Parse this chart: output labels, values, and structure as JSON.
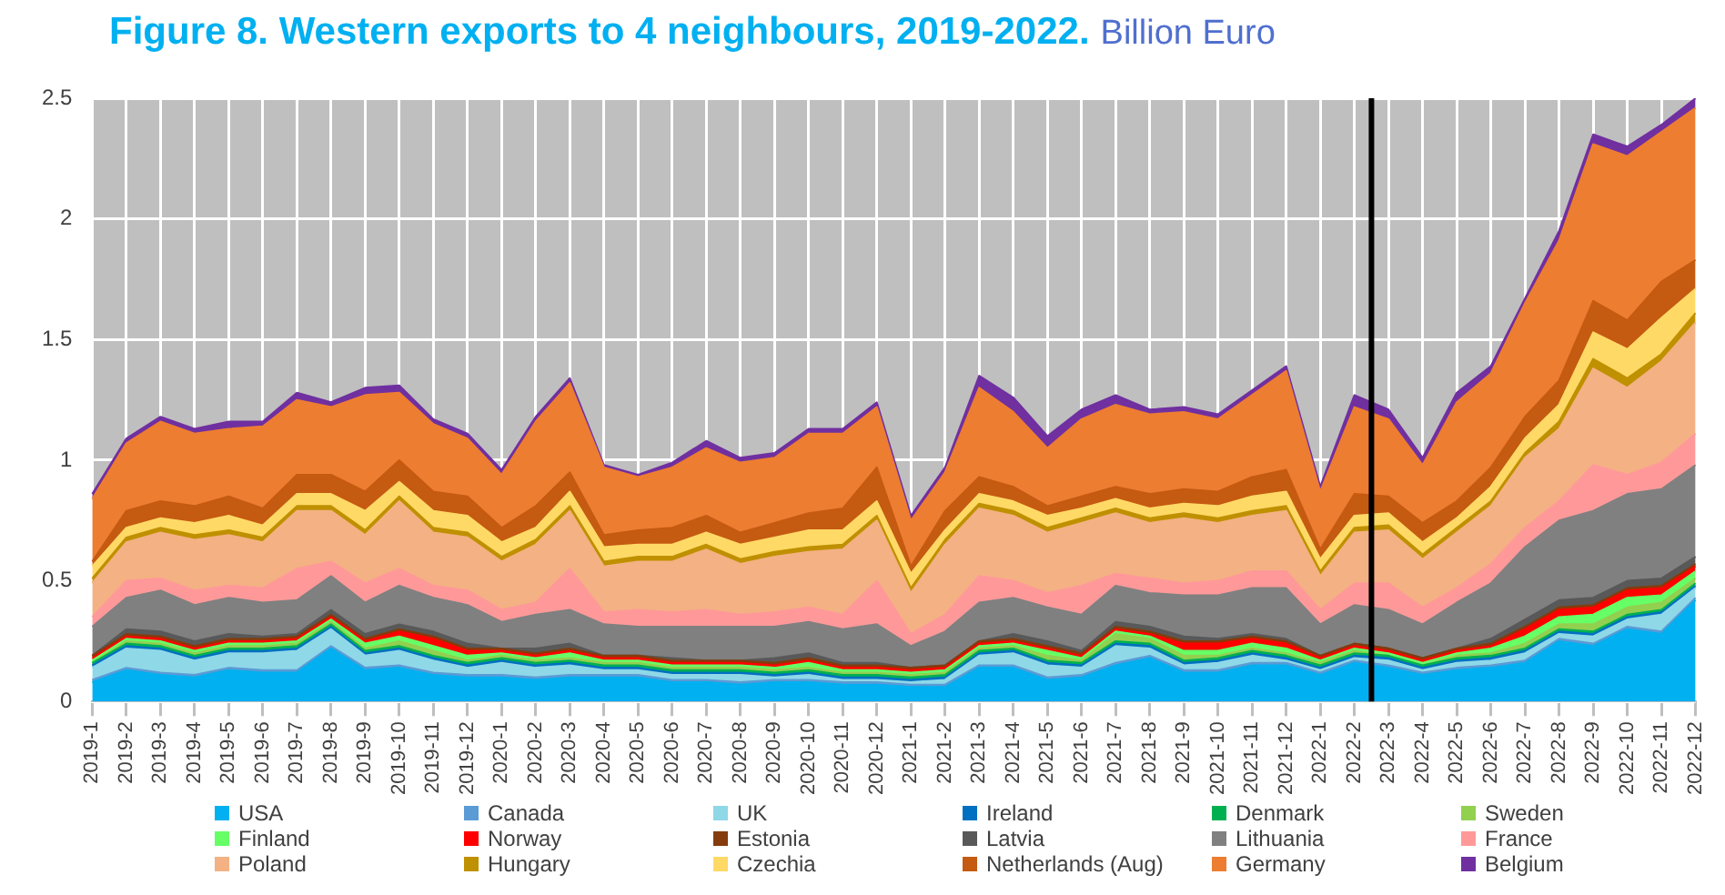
{
  "chart_data": {
    "type": "area",
    "title": "Figure 8. Western exports to 4 neighbours, 2019-2022.",
    "subtitle": "Billion Euro",
    "stacked": true,
    "grid": true,
    "legend": "bottom",
    "ylim": [
      0,
      2.5
    ],
    "yticks": [
      0,
      0.5,
      1,
      1.5,
      2,
      2.5
    ],
    "categories": [
      "2019-1",
      "2019-2",
      "2019-3",
      "2019-4",
      "2019-5",
      "2019-6",
      "2019-7",
      "2019-8",
      "2019-9",
      "2019-10",
      "2019-11",
      "2019-12",
      "2020-1",
      "2020-2",
      "2020-3",
      "2020-4",
      "2020-5",
      "2020-6",
      "2020-7",
      "2020-8",
      "2020-9",
      "2020-10",
      "2020-11",
      "2020-12",
      "2021-1",
      "2021-2",
      "2021-3",
      "2021-4",
      "2021-5",
      "2021-6",
      "2021-7",
      "2021-8",
      "2021-9",
      "2021-10",
      "2021-11",
      "2021-12",
      "2022-1",
      "2022-2",
      "2022-3",
      "2022-4",
      "2022-5",
      "2022-6",
      "2022-7",
      "2022-8",
      "2022-9",
      "2022-10",
      "2022-11",
      "2022-12"
    ],
    "ref_lines": [
      {
        "axis": "x",
        "value": "2022-3",
        "color": "#000000"
      }
    ],
    "series": [
      {
        "name": "USA",
        "color": "#00b0f0",
        "values": [
          0.08,
          0.13,
          0.11,
          0.1,
          0.13,
          0.12,
          0.12,
          0.22,
          0.13,
          0.14,
          0.11,
          0.1,
          0.1,
          0.09,
          0.1,
          0.1,
          0.1,
          0.08,
          0.08,
          0.07,
          0.08,
          0.08,
          0.07,
          0.07,
          0.06,
          0.06,
          0.14,
          0.14,
          0.09,
          0.1,
          0.15,
          0.18,
          0.12,
          0.12,
          0.15,
          0.15,
          0.11,
          0.16,
          0.14,
          0.11,
          0.13,
          0.14,
          0.16,
          0.25,
          0.23,
          0.3,
          0.28,
          0.42
        ]
      },
      {
        "name": "Canada",
        "color": "#5b9bd5",
        "values": [
          0.01,
          0.01,
          0.01,
          0.01,
          0.01,
          0.01,
          0.01,
          0.01,
          0.01,
          0.01,
          0.01,
          0.01,
          0.01,
          0.01,
          0.01,
          0.01,
          0.01,
          0.01,
          0.01,
          0.01,
          0.01,
          0.01,
          0.01,
          0.01,
          0.01,
          0.01,
          0.01,
          0.01,
          0.01,
          0.01,
          0.01,
          0.01,
          0.01,
          0.01,
          0.01,
          0.01,
          0.01,
          0.01,
          0.01,
          0.01,
          0.01,
          0.01,
          0.01,
          0.01,
          0.01,
          0.01,
          0.01,
          0.01
        ]
      },
      {
        "name": "UK",
        "color": "#8fd8e8",
        "values": [
          0.05,
          0.08,
          0.09,
          0.06,
          0.06,
          0.07,
          0.08,
          0.07,
          0.05,
          0.06,
          0.05,
          0.03,
          0.05,
          0.04,
          0.04,
          0.02,
          0.02,
          0.02,
          0.02,
          0.03,
          0.01,
          0.02,
          0.01,
          0.01,
          0.01,
          0.02,
          0.04,
          0.05,
          0.05,
          0.03,
          0.07,
          0.03,
          0.02,
          0.03,
          0.03,
          0.01,
          0.01,
          0.01,
          0.02,
          0.01,
          0.02,
          0.02,
          0.03,
          0.02,
          0.03,
          0.03,
          0.07,
          0.04
        ]
      },
      {
        "name": "Ireland",
        "color": "#0070c0",
        "values": [
          0.01,
          0.01,
          0.01,
          0.01,
          0.01,
          0.01,
          0.01,
          0.01,
          0.01,
          0.01,
          0.01,
          0.01,
          0.01,
          0.01,
          0.01,
          0.01,
          0.01,
          0.01,
          0.01,
          0.01,
          0.01,
          0.01,
          0.01,
          0.01,
          0.01,
          0.01,
          0.01,
          0.01,
          0.01,
          0.01,
          0.01,
          0.01,
          0.01,
          0.01,
          0.01,
          0.01,
          0.01,
          0.01,
          0.01,
          0.01,
          0.01,
          0.01,
          0.01,
          0.01,
          0.01,
          0.01,
          0.01,
          0.01
        ]
      },
      {
        "name": "Denmark",
        "color": "#00b050",
        "values": [
          0.01,
          0.01,
          0.01,
          0.01,
          0.01,
          0.01,
          0.01,
          0.01,
          0.01,
          0.01,
          0.01,
          0.01,
          0.01,
          0.01,
          0.01,
          0.01,
          0.01,
          0.01,
          0.01,
          0.01,
          0.01,
          0.01,
          0.01,
          0.01,
          0.01,
          0.01,
          0.01,
          0.01,
          0.01,
          0.01,
          0.01,
          0.01,
          0.01,
          0.01,
          0.01,
          0.01,
          0.01,
          0.01,
          0.01,
          0.01,
          0.01,
          0.01,
          0.01,
          0.01,
          0.01,
          0.01,
          0.01,
          0.01
        ]
      },
      {
        "name": "Sweden",
        "color": "#92d050",
        "values": [
          0,
          0.01,
          0.01,
          0.01,
          0.01,
          0.01,
          0.01,
          0.01,
          0.01,
          0.02,
          0.02,
          0.01,
          0.01,
          0.01,
          0.01,
          0.01,
          0.01,
          0.01,
          0.01,
          0.01,
          0.01,
          0.01,
          0.01,
          0.01,
          0.01,
          0.01,
          0.01,
          0.01,
          0.02,
          0.01,
          0.03,
          0.02,
          0.02,
          0.01,
          0.01,
          0.01,
          0.01,
          0.01,
          0,
          0,
          0.01,
          0.01,
          0.02,
          0.02,
          0.03,
          0.03,
          0.03,
          0.02
        ]
      },
      {
        "name": "Finland",
        "color": "#66ff66",
        "values": [
          0.01,
          0.01,
          0.01,
          0.01,
          0.01,
          0.01,
          0.01,
          0.01,
          0.02,
          0.02,
          0.02,
          0.02,
          0.01,
          0.01,
          0.02,
          0.01,
          0.01,
          0.01,
          0.01,
          0.01,
          0.01,
          0.02,
          0.01,
          0.01,
          0.01,
          0.01,
          0.01,
          0.01,
          0.02,
          0.01,
          0.01,
          0.01,
          0.02,
          0.02,
          0.02,
          0.02,
          0.01,
          0.01,
          0.01,
          0.01,
          0.01,
          0.02,
          0.03,
          0.03,
          0.04,
          0.04,
          0.03,
          0.03
        ]
      },
      {
        "name": "Norway",
        "color": "#ff0000",
        "values": [
          0.01,
          0.01,
          0.01,
          0.01,
          0.01,
          0.01,
          0.01,
          0.01,
          0.01,
          0.02,
          0.03,
          0.02,
          0.01,
          0.01,
          0.01,
          0.01,
          0.01,
          0.01,
          0.01,
          0.01,
          0.01,
          0.01,
          0.01,
          0.01,
          0.01,
          0.01,
          0.01,
          0.01,
          0.01,
          0.01,
          0.01,
          0.01,
          0.03,
          0.03,
          0.02,
          0.02,
          0.01,
          0.01,
          0.01,
          0.01,
          0.01,
          0.01,
          0.03,
          0.03,
          0.03,
          0.03,
          0.03,
          0.02
        ]
      },
      {
        "name": "Estonia",
        "color": "#843c0c",
        "values": [
          0.01,
          0.01,
          0.01,
          0.01,
          0.01,
          0.01,
          0.01,
          0.01,
          0.01,
          0.01,
          0.01,
          0.01,
          0.01,
          0.01,
          0.01,
          0.01,
          0.01,
          0.01,
          0.01,
          0.01,
          0.01,
          0.01,
          0.01,
          0.01,
          0.01,
          0.01,
          0.01,
          0.01,
          0.01,
          0.01,
          0.01,
          0.01,
          0.01,
          0.01,
          0.01,
          0.01,
          0.01,
          0.01,
          0.01,
          0.01,
          0.01,
          0.01,
          0.01,
          0.01,
          0.01,
          0.01,
          0.01,
          0.01
        ]
      },
      {
        "name": "Latvia",
        "color": "#595959",
        "values": [
          0,
          0.02,
          0.02,
          0.02,
          0.02,
          0.01,
          0.01,
          0.02,
          0.02,
          0.02,
          0.02,
          0.02,
          0,
          0.02,
          0.02,
          0,
          0,
          0.01,
          0,
          0,
          0.02,
          0.02,
          0.01,
          0.01,
          0,
          0,
          0,
          0.02,
          0.02,
          0.01,
          0.02,
          0.02,
          0.02,
          0.01,
          0.01,
          0.01,
          0,
          0,
          0,
          0,
          0,
          0.02,
          0.03,
          0.03,
          0.03,
          0.03,
          0.03,
          0.03
        ]
      },
      {
        "name": "Lithuania",
        "color": "#808080",
        "values": [
          0.12,
          0.13,
          0.17,
          0.15,
          0.15,
          0.14,
          0.14,
          0.14,
          0.13,
          0.16,
          0.14,
          0.16,
          0.11,
          0.14,
          0.14,
          0.13,
          0.12,
          0.13,
          0.14,
          0.14,
          0.13,
          0.13,
          0.14,
          0.16,
          0.09,
          0.14,
          0.16,
          0.15,
          0.14,
          0.15,
          0.15,
          0.14,
          0.17,
          0.18,
          0.19,
          0.21,
          0.13,
          0.16,
          0.16,
          0.14,
          0.19,
          0.23,
          0.3,
          0.33,
          0.36,
          0.36,
          0.37,
          0.38
        ]
      },
      {
        "name": "France",
        "color": "#ff9999",
        "values": [
          0.04,
          0.07,
          0.05,
          0.06,
          0.05,
          0.06,
          0.13,
          0.06,
          0.08,
          0.07,
          0.05,
          0.06,
          0.05,
          0.05,
          0.17,
          0.05,
          0.07,
          0.06,
          0.07,
          0.05,
          0.06,
          0.06,
          0.06,
          0.18,
          0.05,
          0.07,
          0.11,
          0.07,
          0.06,
          0.12,
          0.05,
          0.06,
          0.05,
          0.06,
          0.07,
          0.07,
          0.06,
          0.09,
          0.11,
          0.07,
          0.06,
          0.08,
          0.08,
          0.08,
          0.19,
          0.08,
          0.11,
          0.13
        ]
      },
      {
        "name": "Poland",
        "color": "#f4b183",
        "values": [
          0.14,
          0.16,
          0.19,
          0.21,
          0.21,
          0.19,
          0.24,
          0.21,
          0.2,
          0.28,
          0.22,
          0.22,
          0.2,
          0.24,
          0.24,
          0.19,
          0.2,
          0.21,
          0.25,
          0.21,
          0.23,
          0.23,
          0.27,
          0.25,
          0.17,
          0.29,
          0.28,
          0.27,
          0.25,
          0.26,
          0.25,
          0.23,
          0.27,
          0.24,
          0.23,
          0.25,
          0.14,
          0.21,
          0.22,
          0.2,
          0.23,
          0.24,
          0.29,
          0.3,
          0.4,
          0.36,
          0.42,
          0.46
        ]
      },
      {
        "name": "Hungary",
        "color": "#bf9000",
        "values": [
          0.02,
          0.02,
          0.02,
          0.02,
          0.02,
          0.02,
          0.02,
          0.02,
          0.02,
          0.02,
          0.02,
          0.02,
          0.02,
          0.02,
          0.02,
          0.02,
          0.02,
          0.02,
          0.02,
          0.02,
          0.02,
          0.02,
          0.02,
          0.02,
          0.02,
          0.02,
          0.02,
          0.02,
          0.02,
          0.02,
          0.02,
          0.02,
          0.02,
          0.02,
          0.02,
          0.02,
          0.02,
          0.02,
          0.02,
          0.02,
          0.02,
          0.02,
          0.02,
          0.03,
          0.04,
          0.04,
          0.03,
          0.04
        ]
      },
      {
        "name": "Czechia",
        "color": "#ffd966",
        "values": [
          0.05,
          0.04,
          0.04,
          0.05,
          0.06,
          0.05,
          0.05,
          0.05,
          0.08,
          0.06,
          0.07,
          0.07,
          0.06,
          0.05,
          0.06,
          0.06,
          0.05,
          0.05,
          0.05,
          0.06,
          0.06,
          0.07,
          0.06,
          0.06,
          0.06,
          0.04,
          0.04,
          0.04,
          0.05,
          0.04,
          0.04,
          0.04,
          0.04,
          0.05,
          0.06,
          0.06,
          0.05,
          0.05,
          0.05,
          0.05,
          0.04,
          0.06,
          0.06,
          0.07,
          0.11,
          0.12,
          0.15,
          0.1
        ]
      },
      {
        "name": "Netherlands (Aug)",
        "color": "#c55a11",
        "values": [
          0.02,
          0.07,
          0.07,
          0.07,
          0.08,
          0.07,
          0.08,
          0.08,
          0.08,
          0.09,
          0.08,
          0.08,
          0.06,
          0.09,
          0.08,
          0.05,
          0.06,
          0.07,
          0.07,
          0.05,
          0.06,
          0.07,
          0.09,
          0.14,
          0.03,
          0.08,
          0.07,
          0.06,
          0.04,
          0.05,
          0.05,
          0.06,
          0.06,
          0.06,
          0.08,
          0.09,
          0.04,
          0.09,
          0.07,
          0.08,
          0.07,
          0.08,
          0.09,
          0.1,
          0.13,
          0.12,
          0.15,
          0.12
        ]
      },
      {
        "name": "Germany",
        "color": "#ed7d31",
        "values": [
          0.26,
          0.28,
          0.33,
          0.3,
          0.28,
          0.34,
          0.31,
          0.28,
          0.4,
          0.28,
          0.28,
          0.24,
          0.22,
          0.35,
          0.37,
          0.28,
          0.22,
          0.25,
          0.28,
          0.29,
          0.27,
          0.33,
          0.31,
          0.25,
          0.19,
          0.16,
          0.37,
          0.31,
          0.24,
          0.32,
          0.34,
          0.33,
          0.32,
          0.3,
          0.34,
          0.41,
          0.24,
          0.36,
          0.32,
          0.24,
          0.41,
          0.39,
          0.47,
          0.58,
          0.65,
          0.68,
          0.62,
          0.63
        ]
      },
      {
        "name": "Belgium",
        "color": "#7030a0",
        "values": [
          0.02,
          0.02,
          0.02,
          0.02,
          0.03,
          0.02,
          0.03,
          0.02,
          0.03,
          0.03,
          0.02,
          0.02,
          0.02,
          0.02,
          0.02,
          0.01,
          0.01,
          0.02,
          0.03,
          0.02,
          0.02,
          0.02,
          0.02,
          0.02,
          0.02,
          0.02,
          0.05,
          0.06,
          0.05,
          0.04,
          0.04,
          0.02,
          0.02,
          0.02,
          0.02,
          0.02,
          0.02,
          0.05,
          0.04,
          0.03,
          0.04,
          0.03,
          0.02,
          0.04,
          0.04,
          0.04,
          0.03,
          0.04
        ]
      }
    ]
  }
}
